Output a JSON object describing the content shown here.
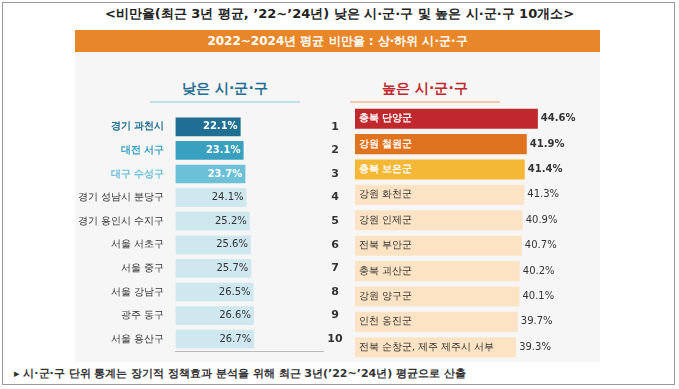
{
  "title": "<비만율(최근 3년 평균, ’22~’24년) 낮은 시·군·구 및 높은 시·군·구 10개소>",
  "banner": "2022~2024년 평균 비만율 : 상·하위 시·군·구",
  "ranks": [
    1,
    2,
    3,
    4,
    5,
    6,
    7,
    8,
    9,
    10
  ],
  "footnote": "▸ 시·군·구 단위 통계는 장기적 정책효과 분석을 위해 최근 3년(’22~’24년) 평균으로 산출",
  "chart_data": [
    {
      "type": "bar",
      "title": "낮은 시·군·구",
      "orientation": "horizontal",
      "categories": [
        "경기 과천시",
        "대전 서구",
        "대구 수성구",
        "경기 성남시 분당구",
        "경기 용인시 수지구",
        "서울 서초구",
        "서울 중구",
        "서울 강남구",
        "광주 동구",
        "서울 용산구"
      ],
      "values": [
        22.1,
        23.1,
        23.7,
        24.1,
        25.2,
        25.6,
        25.7,
        26.5,
        26.6,
        26.7
      ],
      "value_labels": [
        "22.1%",
        "23.1%",
        "23.7%",
        "24.1%",
        "25.2%",
        "25.6%",
        "25.7%",
        "26.5%",
        "26.6%",
        "26.7%"
      ],
      "colors": [
        "#1f6e94",
        "#3aa0c0",
        "#6cc1d8",
        "#cfe8f0",
        "#cfe8f0",
        "#cfe8f0",
        "#cfe8f0",
        "#cfe8f0",
        "#cfe8f0",
        "#cfe8f0"
      ],
      "xlim": [
        0,
        50
      ],
      "xticks": [
        0,
        10,
        20,
        30,
        40,
        50
      ],
      "grid": false,
      "tick_labels": "y",
      "data_labels": true
    },
    {
      "type": "bar",
      "title": "높은 시·군·구",
      "orientation": "horizontal",
      "categories": [
        "충북 단양군",
        "강원 철원군",
        "충북 보은군",
        "강원 화천군",
        "강원 인제군",
        "전북 부안군",
        "충북 괴산군",
        "강원 양구군",
        "인천 옹진군",
        "전북 순창군, 제주 제주시 서부"
      ],
      "values": [
        44.6,
        41.9,
        41.4,
        41.3,
        40.9,
        40.7,
        40.2,
        40.1,
        39.7,
        39.3
      ],
      "value_labels": [
        "44.6%",
        "41.9%",
        "41.4%",
        "41.3%",
        "40.9%",
        "40.7%",
        "40.2%",
        "40.1%",
        "39.7%",
        "39.3%"
      ],
      "colors": [
        "#c0282d",
        "#e0731f",
        "#f5b836",
        "#fbe3c4",
        "#fbe3c4",
        "#fbe3c4",
        "#fbe3c4",
        "#fbe3c4",
        "#fbe3c4",
        "#fbe3c4"
      ],
      "xlim": [
        0,
        50
      ],
      "xticks": [
        0,
        10,
        20,
        30,
        40,
        50
      ],
      "grid": false,
      "tick_labels": false,
      "data_labels": true
    }
  ]
}
